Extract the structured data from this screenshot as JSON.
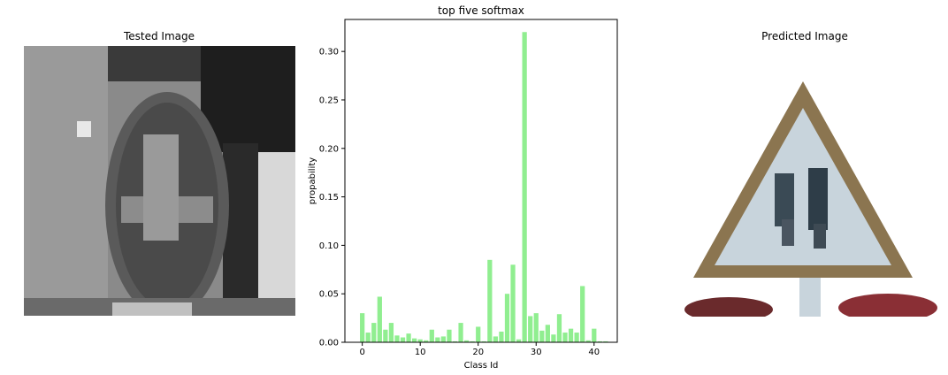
{
  "left_panel": {
    "title": "Tested Image"
  },
  "right_panel": {
    "title": "Predicted Image"
  },
  "chart_data": {
    "type": "bar",
    "title": "top five softmax",
    "xlabel": "Class Id",
    "ylabel": "propability",
    "bar_color": "#90ee90",
    "xlim": [
      -3,
      44
    ],
    "ylim": [
      0,
      0.333
    ],
    "xticks": [
      0,
      10,
      20,
      30,
      40
    ],
    "yticks": [
      0.0,
      0.05,
      0.1,
      0.15,
      0.2,
      0.25,
      0.3
    ],
    "ytick_labels": [
      "0.00",
      "0.05",
      "0.10",
      "0.15",
      "0.20",
      "0.25",
      "0.30"
    ],
    "categories": [
      0,
      1,
      2,
      3,
      4,
      5,
      6,
      7,
      8,
      9,
      10,
      11,
      12,
      13,
      14,
      15,
      16,
      17,
      18,
      19,
      20,
      21,
      22,
      23,
      24,
      25,
      26,
      27,
      28,
      29,
      30,
      31,
      32,
      33,
      34,
      35,
      36,
      37,
      38,
      39,
      40,
      41,
      42
    ],
    "values": [
      0.03,
      0.01,
      0.02,
      0.047,
      0.013,
      0.02,
      0.007,
      0.005,
      0.009,
      0.004,
      0.003,
      0.002,
      0.013,
      0.005,
      0.006,
      0.013,
      0.001,
      0.02,
      0.002,
      0.001,
      0.016,
      0.001,
      0.085,
      0.006,
      0.011,
      0.05,
      0.08,
      0.003,
      0.32,
      0.027,
      0.03,
      0.012,
      0.018,
      0.008,
      0.029,
      0.01,
      0.014,
      0.01,
      0.058,
      0.002,
      0.014,
      0.001,
      0.001
    ]
  }
}
